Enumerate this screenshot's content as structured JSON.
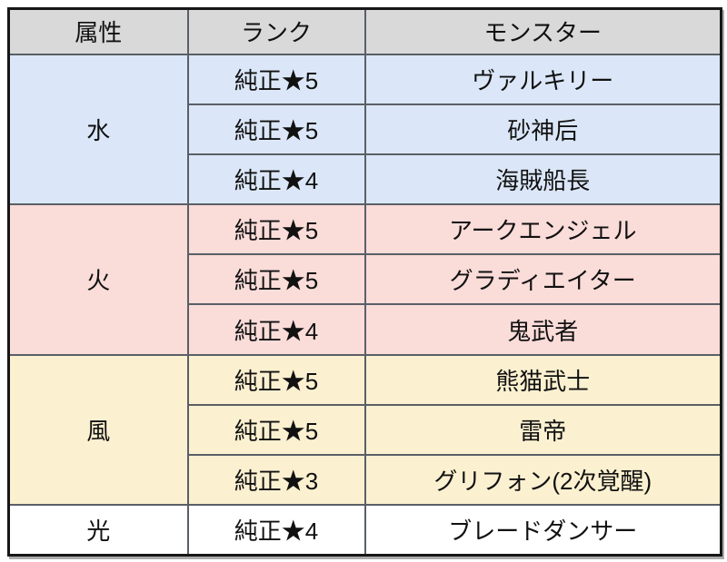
{
  "table": {
    "headers": [
      {
        "label": "属性"
      },
      {
        "label": "ランク"
      },
      {
        "label": "モンスター"
      }
    ],
    "header_bg": "#d9d9d9",
    "sections": [
      {
        "element": "水",
        "color": "#dbe7f8",
        "rows": [
          {
            "rank": "純正★5",
            "monster": "ヴァルキリー"
          },
          {
            "rank": "純正★5",
            "monster": "砂神后"
          },
          {
            "rank": "純正★4",
            "monster": "海賊船長"
          }
        ]
      },
      {
        "element": "火",
        "color": "#fadcd9",
        "rows": [
          {
            "rank": "純正★5",
            "monster": "アークエンジェル"
          },
          {
            "rank": "純正★5",
            "monster": "グラディエイター"
          },
          {
            "rank": "純正★4",
            "monster": "鬼武者"
          }
        ]
      },
      {
        "element": "風",
        "color": "#fbf0d0",
        "rows": [
          {
            "rank": "純正★5",
            "monster": "熊猫武士"
          },
          {
            "rank": "純正★5",
            "monster": "雷帝"
          },
          {
            "rank": "純正★3",
            "monster": "グリフォン(2次覚醒)"
          }
        ]
      },
      {
        "element": "光",
        "color": "#ffffff",
        "rows": [
          {
            "rank": "純正★4",
            "monster": "ブレードダンサー"
          }
        ]
      }
    ],
    "colors": {
      "border_inner": "#5a5f66",
      "border_outer": "#171717",
      "text": "#111111"
    }
  },
  "chart_data": {
    "type": "table",
    "columns": [
      "属性",
      "ランク",
      "モンスター"
    ],
    "rows": [
      [
        "水",
        "純正★5",
        "ヴァルキリー"
      ],
      [
        "水",
        "純正★5",
        "砂神后"
      ],
      [
        "水",
        "純正★4",
        "海賊船長"
      ],
      [
        "火",
        "純正★5",
        "アークエンジェル"
      ],
      [
        "火",
        "純正★5",
        "グラディエイター"
      ],
      [
        "火",
        "純正★4",
        "鬼武者"
      ],
      [
        "風",
        "純正★5",
        "熊猫武士"
      ],
      [
        "風",
        "純正★5",
        "雷帝"
      ],
      [
        "風",
        "純正★3",
        "グリフォン(2次覚醒)"
      ],
      [
        "光",
        "純正★4",
        "ブレードダンサー"
      ]
    ]
  }
}
